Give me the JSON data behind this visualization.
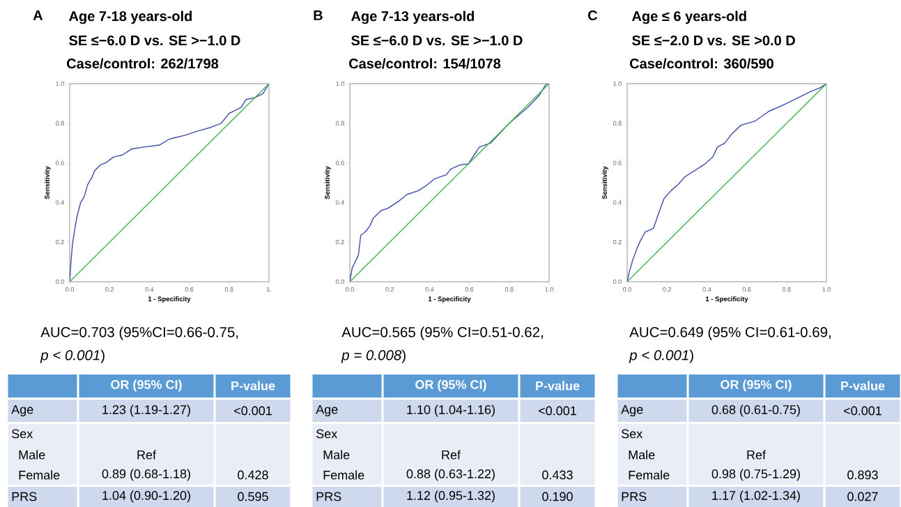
{
  "chart_data": [
    {
      "type": "line",
      "title": "Age 7-18 years-old",
      "subtitle": "SE ≤−6.0 D vs. SE >−1.0 D",
      "xlabel": "1 - Specificity",
      "ylabel": "Sensitivity",
      "xlim": [
        0,
        1
      ],
      "ylim": [
        0,
        1
      ],
      "xticks": [
        {
          "value": 0,
          "label": "0.0"
        },
        {
          "value": 0.2,
          "label": "0.2"
        },
        {
          "value": 0.4,
          "label": "0.4"
        },
        {
          "value": 0.6,
          "label": "0.6"
        },
        {
          "value": 0.8,
          "label": "0.8"
        },
        {
          "value": 1,
          "label": "1."
        }
      ],
      "yticks": [
        {
          "value": 0,
          "label": "0.0"
        },
        {
          "value": 0.2,
          "label": "0.2"
        },
        {
          "value": 0.4,
          "label": "0.4"
        },
        {
          "value": 0.6,
          "label": "0.6"
        },
        {
          "value": 0.8,
          "label": "0.8"
        },
        {
          "value": 1,
          "label": "1.0"
        }
      ],
      "marker": "none",
      "line_style": "solid",
      "series": [
        {
          "color": "#3b4cae",
          "x": [
            0,
            0.006,
            0.014,
            0.026,
            0.037,
            0.055,
            0.073,
            0.09,
            0.113,
            0.125,
            0.154,
            0.18,
            0.22,
            0.265,
            0.31,
            0.37,
            0.45,
            0.5,
            0.58,
            0.64,
            0.71,
            0.76,
            0.8,
            0.86,
            0.885,
            0.93,
            0.97,
            1
          ],
          "values": [
            0,
            0.094,
            0.19,
            0.27,
            0.33,
            0.4,
            0.43,
            0.49,
            0.53,
            0.56,
            0.59,
            0.6,
            0.63,
            0.64,
            0.67,
            0.68,
            0.69,
            0.72,
            0.74,
            0.76,
            0.78,
            0.8,
            0.85,
            0.88,
            0.92,
            0.93,
            0.95,
            1
          ]
        },
        {
          "color": "#3cb54a",
          "x": [
            0,
            1
          ],
          "values": [
            0,
            1
          ]
        }
      ],
      "annotations": [
        "A",
        "Case/control: 262/1798",
        "AUC=0.703 (95%CI=0.66-0.75,",
        "*p < 0.001*)",
        "OR (95% CI)",
        "P-value",
        "Age",
        "1.23 (1.19-1.27)",
        "<0.001",
        "Sex",
        "Male",
        "Female",
        "Ref",
        "0.89 (0.68-1.18)",
        "0.428",
        "PRS",
        "1.04 (0.90-1.20)",
        "0.595"
      ]
    },
    {
      "type": "line",
      "title": "Age 7-13 years-old",
      "subtitle": "SE ≤−6.0 D vs. SE >−1.0 D",
      "xlabel": "1 - Specificity",
      "ylabel": "Sensitivity",
      "xlim": [
        0,
        1
      ],
      "ylim": [
        0,
        1
      ],
      "xticks": [
        {
          "value": 0,
          "label": "0.0"
        },
        {
          "value": 0.2,
          "label": "0.2"
        },
        {
          "value": 0.4,
          "label": "0.4"
        },
        {
          "value": 0.6,
          "label": "0.6"
        },
        {
          "value": 0.8,
          "label": "0.8"
        },
        {
          "value": 1,
          "label": "1.0"
        }
      ],
      "yticks": [
        {
          "value": 0,
          "label": "0.0"
        },
        {
          "value": 0.2,
          "label": "0.2"
        },
        {
          "value": 0.4,
          "label": "0.4"
        },
        {
          "value": 0.6,
          "label": "0.6"
        },
        {
          "value": 0.8,
          "label": "0.8"
        },
        {
          "value": 1,
          "label": "1.0"
        }
      ],
      "marker": "none",
      "line_style": "solid",
      "series": [
        {
          "color": "#3b4cae",
          "x": [
            0,
            0.012,
            0.03,
            0.043,
            0.055,
            0.076,
            0.1,
            0.117,
            0.158,
            0.19,
            0.25,
            0.286,
            0.344,
            0.39,
            0.426,
            0.484,
            0.508,
            0.554,
            0.595,
            0.65,
            0.706,
            0.753,
            0.8,
            0.846,
            0.893,
            0.95,
            0.986,
            1
          ],
          "values": [
            0,
            0.07,
            0.106,
            0.135,
            0.235,
            0.25,
            0.28,
            0.32,
            0.36,
            0.37,
            0.41,
            0.44,
            0.46,
            0.49,
            0.52,
            0.54,
            0.57,
            0.59,
            0.595,
            0.68,
            0.7,
            0.75,
            0.8,
            0.84,
            0.88,
            0.94,
            1,
            1
          ]
        },
        {
          "color": "#3cb54a",
          "x": [
            0,
            1
          ],
          "values": [
            0,
            1
          ]
        }
      ],
      "annotations": [
        "B",
        "Case/control: 154/1078",
        "AUC=0.565 (95% CI=0.51-0.62,",
        "*p = 0.008*)",
        "OR (95% CI)",
        "P-value",
        "Age",
        "1.10 (1.04-1.16)",
        "<0.001",
        "Sex",
        "Male",
        "Female",
        "Ref",
        "0.88 (0.63-1.22)",
        "0.433",
        "PRS",
        "1.12 (0.95-1.32)",
        "0.190"
      ]
    },
    {
      "type": "line",
      "title": "Age ≤ 6 years-old",
      "subtitle": "SE ≤−2.0 D vs. SE >0.0 D",
      "xlabel": "1 - Specificity",
      "ylabel": "Sensitivity",
      "xlim": [
        0,
        1
      ],
      "ylim": [
        0,
        1
      ],
      "xticks": [
        {
          "value": 0,
          "label": "0.0"
        },
        {
          "value": 0.2,
          "label": "0.2"
        },
        {
          "value": 0.4,
          "label": "0.4"
        },
        {
          "value": 0.6,
          "label": "0.6"
        },
        {
          "value": 0.8,
          "label": "0.8"
        },
        {
          "value": 1,
          "label": "1.0"
        }
      ],
      "yticks": [
        {
          "value": 0,
          "label": "0.0"
        },
        {
          "value": 0.2,
          "label": "0.2"
        },
        {
          "value": 0.4,
          "label": "0.4"
        },
        {
          "value": 0.6,
          "label": "0.6"
        },
        {
          "value": 0.8,
          "label": "0.8"
        },
        {
          "value": 1,
          "label": "1.0"
        }
      ],
      "marker": "none",
      "line_style": "solid",
      "series": [
        {
          "color": "#3b4cae",
          "x": [
            0,
            0.01,
            0.027,
            0.05,
            0.068,
            0.09,
            0.132,
            0.156,
            0.185,
            0.22,
            0.255,
            0.29,
            0.337,
            0.384,
            0.43,
            0.453,
            0.49,
            0.524,
            0.57,
            0.64,
            0.71,
            0.78,
            0.85,
            0.92,
            0.97,
            1
          ],
          "values": [
            0,
            0.047,
            0.106,
            0.17,
            0.21,
            0.25,
            0.27,
            0.34,
            0.42,
            0.46,
            0.49,
            0.53,
            0.56,
            0.59,
            0.63,
            0.68,
            0.7,
            0.745,
            0.79,
            0.81,
            0.86,
            0.89,
            0.925,
            0.96,
            0.98,
            1
          ]
        },
        {
          "color": "#3cb54a",
          "x": [
            0,
            1
          ],
          "values": [
            0,
            1
          ]
        }
      ],
      "annotations": [
        "C",
        "Case/control: 360/590",
        "AUC=0.649 (95% CI=0.61-0.69,",
        "*p < 0.001*)",
        "OR (95% CI)",
        "P-value",
        "Age",
        "0.68 (0.61-0.75)",
        "<0.001",
        "Sex",
        "Male",
        "Female",
        "Ref",
        "0.98 (0.75-1.29)",
        "0.893",
        "PRS",
        "1.17 (1.02-1.34)",
        "0.027"
      ]
    }
  ]
}
